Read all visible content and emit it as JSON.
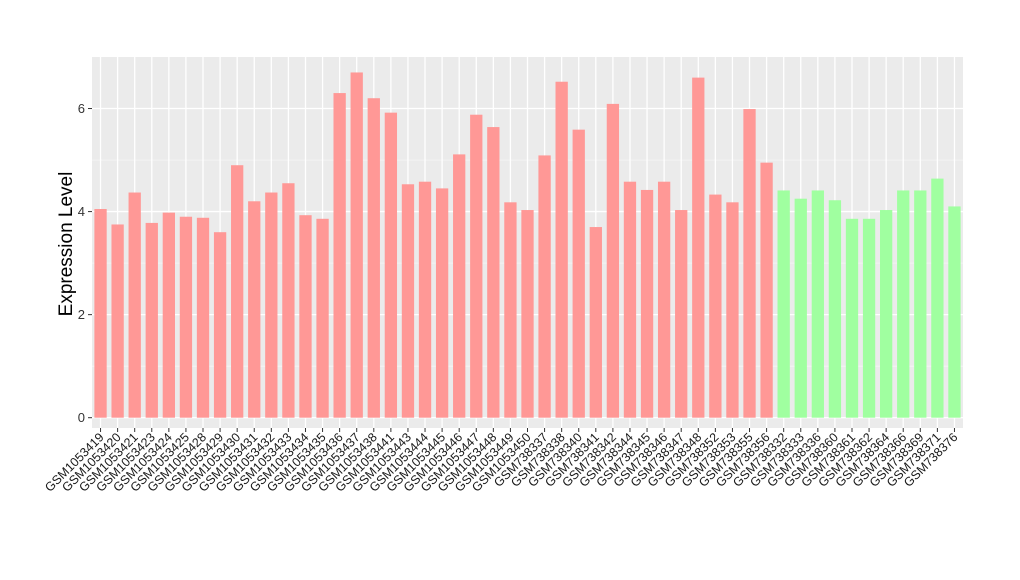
{
  "chart_data": {
    "type": "bar",
    "title": "",
    "xlabel": "",
    "ylabel": "Expression Level",
    "ylim": [
      -0.2,
      7.0
    ],
    "yticks": [
      0,
      2,
      4,
      6
    ],
    "grid": true,
    "legend": "none",
    "colors": {
      "group1": "#ff9896",
      "group2": "#a0ffa0",
      "panel": "#ebebeb",
      "grid": "#ffffff"
    },
    "categories": [
      "GSM1053419",
      "GSM1053420",
      "GSM1053421",
      "GSM1053423",
      "GSM1053424",
      "GSM1053425",
      "GSM1053428",
      "GSM1053429",
      "GSM1053430",
      "GSM1053431",
      "GSM1053432",
      "GSM1053433",
      "GSM1053434",
      "GSM1053435",
      "GSM1053436",
      "GSM1053437",
      "GSM1053438",
      "GSM1053441",
      "GSM1053443",
      "GSM1053444",
      "GSM1053445",
      "GSM1053446",
      "GSM1053447",
      "GSM1053448",
      "GSM1053449",
      "GSM1053450",
      "GSM738337",
      "GSM738338",
      "GSM738340",
      "GSM738341",
      "GSM738342",
      "GSM738344",
      "GSM738345",
      "GSM738346",
      "GSM738347",
      "GSM738348",
      "GSM738352",
      "GSM738353",
      "GSM738355",
      "GSM738356",
      "GSM738332",
      "GSM738333",
      "GSM738336",
      "GSM738360",
      "GSM738361",
      "GSM738362",
      "GSM738364",
      "GSM738366",
      "GSM738369",
      "GSM738371",
      "GSM738376"
    ],
    "values": [
      4.05,
      3.75,
      4.37,
      3.78,
      3.98,
      3.9,
      3.88,
      3.6,
      4.9,
      4.2,
      4.37,
      4.55,
      3.93,
      3.86,
      6.3,
      6.7,
      6.2,
      5.92,
      4.53,
      4.58,
      4.45,
      5.11,
      5.88,
      5.64,
      4.18,
      4.03,
      5.09,
      6.52,
      5.59,
      3.7,
      6.09,
      4.58,
      4.42,
      4.58,
      4.03,
      6.6,
      4.33,
      4.18,
      5.99,
      4.95,
      4.41,
      4.25,
      4.41,
      4.22,
      3.86,
      3.86,
      4.03,
      4.41,
      4.41,
      4.64,
      4.1
    ],
    "group": [
      1,
      1,
      1,
      1,
      1,
      1,
      1,
      1,
      1,
      1,
      1,
      1,
      1,
      1,
      1,
      1,
      1,
      1,
      1,
      1,
      1,
      1,
      1,
      1,
      1,
      1,
      1,
      1,
      1,
      1,
      1,
      1,
      1,
      1,
      1,
      1,
      1,
      1,
      1,
      1,
      2,
      2,
      2,
      2,
      2,
      2,
      2,
      2,
      2,
      2,
      2
    ]
  }
}
